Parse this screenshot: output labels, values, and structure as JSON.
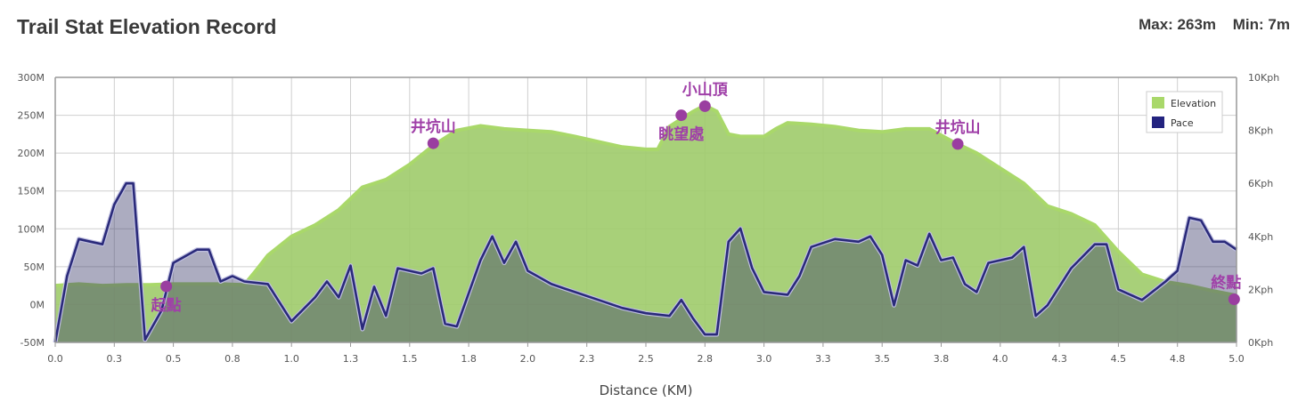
{
  "header": {
    "title": "Trail Stat Elevation Record",
    "max_label": "Max: 263m",
    "min_label": "Min: 7m"
  },
  "colors": {
    "elevation_fill": "#9fcb6a",
    "elevation_line": "#a9d86a",
    "pace_line": "#2a2a7a",
    "pace_fill": "#3a3a6a",
    "waypoint": "#9a3ea0",
    "grid": "#cfcfcf",
    "axis": "#999999"
  },
  "chart_data": {
    "type": "area",
    "xlabel": "Distance (KM)",
    "x_ticks": [
      "0.0",
      "0.3",
      "0.5",
      "0.8",
      "1.0",
      "1.3",
      "1.5",
      "1.8",
      "2.0",
      "2.3",
      "2.5",
      "2.8",
      "3.0",
      "3.3",
      "3.5",
      "3.8",
      "4.0",
      "4.3",
      "4.5",
      "4.8",
      "5.0"
    ],
    "x_range": [
      0,
      5.0
    ],
    "y_left": {
      "ticks": [
        "300M",
        "250M",
        "200M",
        "150M",
        "100M",
        "50M",
        "0M",
        "-50M"
      ],
      "range": [
        -50,
        300
      ]
    },
    "y_right": {
      "ticks": [
        "10Kph",
        "8Kph",
        "6Kph",
        "4Kph",
        "2Kph",
        "0Kph"
      ],
      "range": [
        0,
        10
      ]
    },
    "legend": {
      "placement": "top-right",
      "items": [
        {
          "label": "Elevation",
          "color": "#a9d86a"
        },
        {
          "label": "Pace",
          "color": "#23237f"
        }
      ]
    },
    "series": [
      {
        "name": "Elevation",
        "points": [
          [
            0.0,
            25
          ],
          [
            0.1,
            27
          ],
          [
            0.2,
            25
          ],
          [
            0.3,
            26
          ],
          [
            0.4,
            26
          ],
          [
            0.5,
            27
          ],
          [
            0.6,
            27
          ],
          [
            0.7,
            27
          ],
          [
            0.8,
            26
          ],
          [
            0.85,
            45
          ],
          [
            0.9,
            65
          ],
          [
            1.0,
            90
          ],
          [
            1.1,
            105
          ],
          [
            1.2,
            125
          ],
          [
            1.3,
            155
          ],
          [
            1.4,
            165
          ],
          [
            1.5,
            185
          ],
          [
            1.6,
            210
          ],
          [
            1.7,
            230
          ],
          [
            1.8,
            236
          ],
          [
            1.9,
            232
          ],
          [
            2.0,
            230
          ],
          [
            2.1,
            228
          ],
          [
            2.2,
            222
          ],
          [
            2.3,
            215
          ],
          [
            2.4,
            208
          ],
          [
            2.5,
            205
          ],
          [
            2.55,
            205
          ],
          [
            2.6,
            235
          ],
          [
            2.7,
            255
          ],
          [
            2.75,
            263
          ],
          [
            2.8,
            255
          ],
          [
            2.85,
            225
          ],
          [
            2.9,
            222
          ],
          [
            3.0,
            222
          ],
          [
            3.05,
            232
          ],
          [
            3.1,
            240
          ],
          [
            3.2,
            238
          ],
          [
            3.3,
            235
          ],
          [
            3.4,
            230
          ],
          [
            3.5,
            228
          ],
          [
            3.6,
            232
          ],
          [
            3.7,
            232
          ],
          [
            3.8,
            215
          ],
          [
            3.9,
            200
          ],
          [
            4.0,
            180
          ],
          [
            4.1,
            160
          ],
          [
            4.2,
            130
          ],
          [
            4.3,
            120
          ],
          [
            4.4,
            105
          ],
          [
            4.5,
            70
          ],
          [
            4.6,
            40
          ],
          [
            4.7,
            30
          ],
          [
            4.8,
            25
          ],
          [
            4.9,
            18
          ],
          [
            5.0,
            12
          ]
        ]
      },
      {
        "name": "Pace",
        "points": [
          [
            0.0,
            0.0
          ],
          [
            0.05,
            2.5
          ],
          [
            0.1,
            3.9
          ],
          [
            0.15,
            3.8
          ],
          [
            0.2,
            3.7
          ],
          [
            0.25,
            5.2
          ],
          [
            0.3,
            6.0
          ],
          [
            0.33,
            6.0
          ],
          [
            0.38,
            0.1
          ],
          [
            0.45,
            1.2
          ],
          [
            0.5,
            3.0
          ],
          [
            0.6,
            3.5
          ],
          [
            0.65,
            3.5
          ],
          [
            0.7,
            2.3
          ],
          [
            0.75,
            2.5
          ],
          [
            0.8,
            2.3
          ],
          [
            0.9,
            2.2
          ],
          [
            1.0,
            0.8
          ],
          [
            1.1,
            1.7
          ],
          [
            1.15,
            2.3
          ],
          [
            1.2,
            1.7
          ],
          [
            1.25,
            2.9
          ],
          [
            1.3,
            0.5
          ],
          [
            1.35,
            2.1
          ],
          [
            1.4,
            1.0
          ],
          [
            1.45,
            2.8
          ],
          [
            1.55,
            2.6
          ],
          [
            1.6,
            2.8
          ],
          [
            1.65,
            0.7
          ],
          [
            1.7,
            0.6
          ],
          [
            1.8,
            3.1
          ],
          [
            1.85,
            4.0
          ],
          [
            1.9,
            3.0
          ],
          [
            1.95,
            3.8
          ],
          [
            2.0,
            2.7
          ],
          [
            2.1,
            2.2
          ],
          [
            2.2,
            1.9
          ],
          [
            2.3,
            1.6
          ],
          [
            2.4,
            1.3
          ],
          [
            2.5,
            1.1
          ],
          [
            2.6,
            1.0
          ],
          [
            2.65,
            1.6
          ],
          [
            2.7,
            0.9
          ],
          [
            2.75,
            0.3
          ],
          [
            2.8,
            0.3
          ],
          [
            2.85,
            3.8
          ],
          [
            2.9,
            4.3
          ],
          [
            2.95,
            2.8
          ],
          [
            3.0,
            1.9
          ],
          [
            3.1,
            1.8
          ],
          [
            3.15,
            2.5
          ],
          [
            3.2,
            3.6
          ],
          [
            3.3,
            3.9
          ],
          [
            3.4,
            3.8
          ],
          [
            3.45,
            4.0
          ],
          [
            3.5,
            3.3
          ],
          [
            3.55,
            1.4
          ],
          [
            3.6,
            3.1
          ],
          [
            3.65,
            2.9
          ],
          [
            3.7,
            4.1
          ],
          [
            3.75,
            3.1
          ],
          [
            3.8,
            3.2
          ],
          [
            3.85,
            2.2
          ],
          [
            3.9,
            1.9
          ],
          [
            3.95,
            3.0
          ],
          [
            4.05,
            3.2
          ],
          [
            4.1,
            3.6
          ],
          [
            4.15,
            1.0
          ],
          [
            4.2,
            1.4
          ],
          [
            4.3,
            2.8
          ],
          [
            4.4,
            3.7
          ],
          [
            4.45,
            3.7
          ],
          [
            4.5,
            2.0
          ],
          [
            4.6,
            1.6
          ],
          [
            4.7,
            2.3
          ],
          [
            4.75,
            2.7
          ],
          [
            4.8,
            4.7
          ],
          [
            4.85,
            4.6
          ],
          [
            4.9,
            3.8
          ],
          [
            4.95,
            3.8
          ],
          [
            5.0,
            3.5
          ]
        ]
      }
    ],
    "waypoints": [
      {
        "label": "起點",
        "x": 0.47,
        "elev": 24,
        "label_pos": "below"
      },
      {
        "label": "井坑山",
        "x": 1.6,
        "elev": 213,
        "label_pos": "above"
      },
      {
        "label": "眺望處",
        "x": 2.65,
        "elev": 250,
        "label_pos": "below"
      },
      {
        "label": "小山頂",
        "x": 2.75,
        "elev": 262,
        "label_pos": "above"
      },
      {
        "label": "井坑山",
        "x": 3.82,
        "elev": 212,
        "label_pos": "above"
      },
      {
        "label": "終點",
        "x": 4.99,
        "elev": 7,
        "label_pos": "above"
      }
    ]
  }
}
